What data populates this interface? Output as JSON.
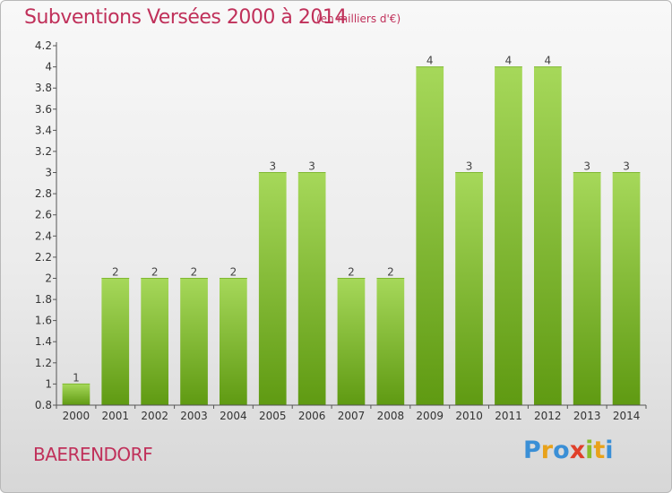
{
  "header": {
    "title": "Subventions Versées 2000 à 2014",
    "unit": "(en milliers d'€)"
  },
  "footer": {
    "commune": "BAERENDORF",
    "logo": "Proxiti"
  },
  "colors": {
    "accent": "#c0305a",
    "bar_light": "#a6d85a",
    "bar_dark": "#5f9a12",
    "axis": "#555555"
  },
  "chart_data": {
    "type": "bar",
    "title": "Subventions Versées 2000 à 2014",
    "subtitle": "(en milliers d'€)",
    "xlabel": "",
    "ylabel": "",
    "categories": [
      "2000",
      "2001",
      "2002",
      "2003",
      "2004",
      "2005",
      "2006",
      "2007",
      "2008",
      "2009",
      "2010",
      "2011",
      "2012",
      "2013",
      "2014"
    ],
    "values": [
      1,
      2,
      2,
      2,
      2,
      3,
      3,
      2,
      2,
      4,
      3,
      4,
      4,
      3,
      3
    ],
    "data_labels": [
      "1",
      "2",
      "2",
      "2",
      "2",
      "3",
      "3",
      "2",
      "2",
      "4",
      "3",
      "4",
      "4",
      "3",
      "3"
    ],
    "ylim": [
      0.8,
      4.2
    ],
    "yticks": [
      "0.8",
      "1",
      "1.2",
      "1.4",
      "1.6",
      "1.8",
      "2",
      "2.2",
      "2.4",
      "2.6",
      "2.8",
      "3",
      "3.2",
      "3.4",
      "3.6",
      "3.8",
      "4",
      "4.2"
    ],
    "grid": false,
    "legend": "none"
  }
}
